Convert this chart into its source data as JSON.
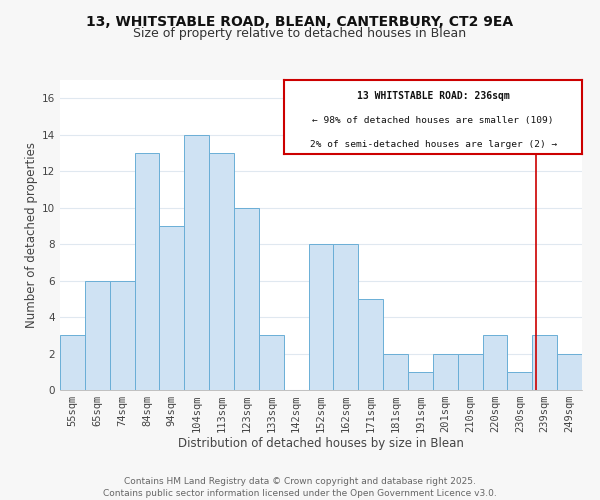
{
  "title_line1": "13, WHITSTABLE ROAD, BLEAN, CANTERBURY, CT2 9EA",
  "title_line2": "Size of property relative to detached houses in Blean",
  "xlabel": "Distribution of detached houses by size in Blean",
  "ylabel": "Number of detached properties",
  "bar_labels": [
    "55sqm",
    "65sqm",
    "74sqm",
    "84sqm",
    "94sqm",
    "104sqm",
    "113sqm",
    "123sqm",
    "133sqm",
    "142sqm",
    "152sqm",
    "162sqm",
    "171sqm",
    "181sqm",
    "191sqm",
    "201sqm",
    "210sqm",
    "220sqm",
    "230sqm",
    "239sqm",
    "249sqm"
  ],
  "bar_heights": [
    3,
    6,
    6,
    13,
    9,
    14,
    13,
    10,
    3,
    0,
    8,
    8,
    5,
    2,
    1,
    2,
    2,
    3,
    1,
    3,
    2
  ],
  "bar_color": "#cfe2f3",
  "bar_edge_color": "#6aaed6",
  "plot_bg_color": "#ffffff",
  "fig_bg_color": "#f7f7f7",
  "grid_color": "#e0e8f0",
  "ylim": [
    0,
    17
  ],
  "yticks": [
    0,
    2,
    4,
    6,
    8,
    10,
    12,
    14,
    16
  ],
  "vline_color": "#cc0000",
  "legend_title": "13 WHITSTABLE ROAD: 236sqm",
  "legend_line1": "← 98% of detached houses are smaller (109)",
  "legend_line2": "2% of semi-detached houses are larger (2) →",
  "legend_box_color": "#cc0000",
  "footer_line1": "Contains HM Land Registry data © Crown copyright and database right 2025.",
  "footer_line2": "Contains public sector information licensed under the Open Government Licence v3.0.",
  "title_fontsize": 10,
  "subtitle_fontsize": 9,
  "axis_label_fontsize": 8.5,
  "tick_fontsize": 7.5,
  "footer_fontsize": 6.5
}
